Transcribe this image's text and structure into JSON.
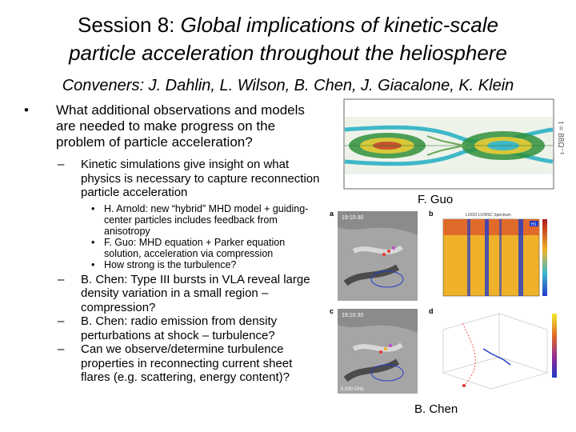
{
  "title": {
    "lead": "Session 8:",
    "rest": " Global implications of kinetic-scale",
    "line2": "particle acceleration throughout the heliosphere"
  },
  "conveners": "Conveners: J. Dahlin, L. Wilson, B. Chen, J. Giacalone, K. Klein",
  "bullets": {
    "main": "What additional observations and models are needed to make progress on the problem of particle acceleration?",
    "kinetic": "Kinetic simulations give insight on what physics is necessary to capture reconnection particle acceleration",
    "sub": [
      "H. Arnold: new “hybrid” MHD model + guiding-center particles includes feedback from anisotropy",
      "F. Guo: MHD equation + Parker equation solution, acceleration via compression",
      "How strong is the turbulence?"
    ],
    "chen1": "B. Chen: Type III bursts in VLA reveal large density variation in a small region – compression?",
    "chen2": "B. Chen: radio emission from density perturbations at shock – turbulence?",
    "observe": "Can we observe/determine turbulence properties in reconnecting current sheet flares (e.g. scattering, energy content)?"
  },
  "markers": {
    "l1": "•",
    "l2": "–",
    "l3": "•"
  },
  "captions": {
    "guo": "F. Guo",
    "chen": "B. Chen"
  },
  "figure_guo": {
    "right_axis_label": "t = 88Ω⁻¹"
  },
  "figure_chen": {
    "panel_a": "a",
    "panel_b": "b",
    "panel_c": "c",
    "panel_d": "d",
    "stamp_top_time": "19:10:30",
    "stamp_bottom_time": "19:10:30",
    "spectrum_title": "LOOO LV/ΦSC Spectrum",
    "spectrum_tag": "H1",
    "freq_label": "5.030 GHz"
  },
  "colors": {
    "contour_green": "#2f8f3a",
    "contour_cyan": "#3fb8c8",
    "contour_yellow": "#d8c83a",
    "spectrum_bg": "#f0b12a",
    "spectrum_blue": "#203cc8"
  }
}
